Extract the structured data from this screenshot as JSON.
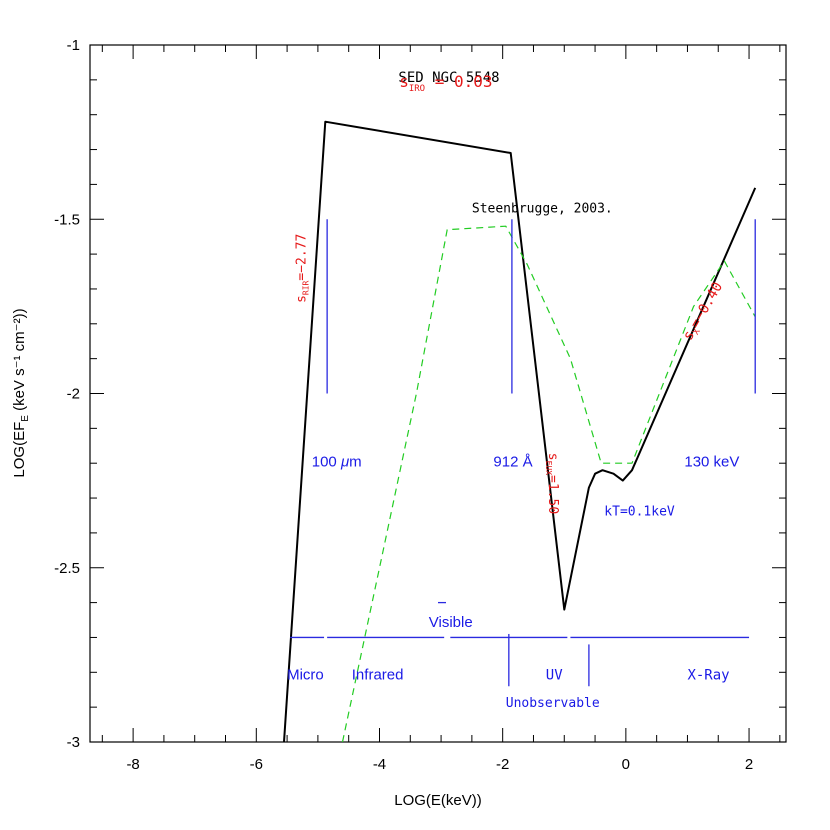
{
  "chart_data": {
    "type": "line",
    "title": "SED NGC 5548",
    "xlabel": "LOG(E(keV))",
    "ylabel_main": "LOG(EF",
    "ylabel_sub": "E",
    "ylabel_tail": " (keV s⁻¹ cm⁻²))",
    "xlim": [
      -8.7,
      2.6
    ],
    "ylim": [
      -3,
      -1
    ],
    "x_ticks": [
      -8,
      -6,
      -4,
      -2,
      0,
      2
    ],
    "y_ticks": [
      -3,
      -2.5,
      -2,
      -1.5,
      -1
    ],
    "x_tick_labels": [
      "-8",
      "-6",
      "-4",
      "-2",
      "0",
      "2"
    ],
    "y_tick_labels": [
      "-3",
      "-2.5",
      "-2",
      "-1.5",
      "-1"
    ],
    "grid": false,
    "series": [
      {
        "color": "#000000",
        "style": "solid",
        "points": [
          [
            -5.55,
            -3.0
          ],
          [
            -4.88,
            -1.22
          ],
          [
            -1.87,
            -1.31
          ],
          [
            -1.0,
            -2.62
          ],
          [
            -0.6,
            -2.27
          ],
          [
            -0.5,
            -2.23
          ],
          [
            -0.38,
            -2.22
          ],
          [
            -0.2,
            -2.23
          ],
          [
            -0.05,
            -2.25
          ],
          [
            0.1,
            -2.22
          ],
          [
            2.1,
            -1.41
          ]
        ]
      },
      {
        "color": "#22cc22",
        "style": "dashed",
        "points": [
          [
            -4.6,
            -3.0
          ],
          [
            -4.0,
            -2.5
          ],
          [
            -3.4,
            -2.0
          ],
          [
            -2.9,
            -1.53
          ],
          [
            -1.95,
            -1.52
          ],
          [
            -1.6,
            -1.63
          ],
          [
            -0.9,
            -1.9
          ],
          [
            -0.4,
            -2.2
          ],
          [
            0.1,
            -2.2
          ],
          [
            1.1,
            -1.75
          ],
          [
            1.6,
            -1.62
          ],
          [
            2.1,
            -1.78
          ]
        ]
      }
    ],
    "vlines": [
      {
        "x": -4.85,
        "y1": -2.0,
        "y2": -1.5
      },
      {
        "x": -1.85,
        "y1": -2.0,
        "y2": -1.5
      },
      {
        "x": 2.1,
        "y1": -2.0,
        "y2": -1.5
      }
    ],
    "band": {
      "y": -2.7,
      "segments": [
        [
          -5.45,
          -4.9
        ],
        [
          -4.85,
          -2.95
        ],
        [
          -2.85,
          -0.95
        ],
        [
          -0.9,
          2.0
        ]
      ],
      "ticks": [
        {
          "x": -1.9,
          "y1": -2.69,
          "y2": -2.84
        },
        {
          "x": -0.6,
          "y1": -2.72,
          "y2": -2.84
        }
      ],
      "visible_mark": {
        "x1": -3.05,
        "x2": -2.92,
        "y": -2.6
      }
    },
    "annotations": {
      "steenbrugge": {
        "text": "Steenbrugge, 2003.",
        "x": -2.5,
        "y": -1.48
      },
      "s_iro": {
        "sym": "s",
        "sub": "IRO",
        "rest": " =  0.03",
        "x": -3.68,
        "y": -1.12
      },
      "s_rir": {
        "sym": "s",
        "sub": "RIR",
        "rest": "=−2.77",
        "x": -5.2,
        "y": -1.74,
        "rotate": -90
      },
      "s_eux": {
        "sym": "s",
        "sub": "EUX",
        "rest": "=1.50",
        "x": -1.25,
        "y": -2.17,
        "rotate": 90
      },
      "s_x": {
        "sym": "s",
        "sub": "X",
        "rest": "=−0.40",
        "x": 1.05,
        "y": -1.85,
        "rotate": -60
      },
      "kt": {
        "text": "kT=0.1keV",
        "x": -0.35,
        "y": -2.35
      }
    },
    "labels": {
      "um100": {
        "prefix": "100 ",
        "mu": "μ",
        "unit": "m",
        "x": -5.1,
        "y": -2.21
      },
      "a912": {
        "text": "912 Å",
        "x": -2.15,
        "y": -2.21
      },
      "kev130": {
        "text": "130 keV",
        "x": 0.95,
        "y": -2.21
      },
      "visible": {
        "text": "Visible",
        "x": -3.2,
        "y": -2.67
      },
      "micro": {
        "text": "Micro",
        "x": -5.5,
        "y": -2.82
      },
      "infrared": {
        "text": "Infrared",
        "x": -4.45,
        "y": -2.82
      },
      "uv": {
        "text": "UV",
        "x": -1.3,
        "y": -2.82
      },
      "xray": {
        "text": "X-Ray",
        "x": 1.0,
        "y": -2.82
      },
      "unobservable": {
        "text": "Unobservable",
        "x": -1.95,
        "y": -2.9
      }
    }
  }
}
